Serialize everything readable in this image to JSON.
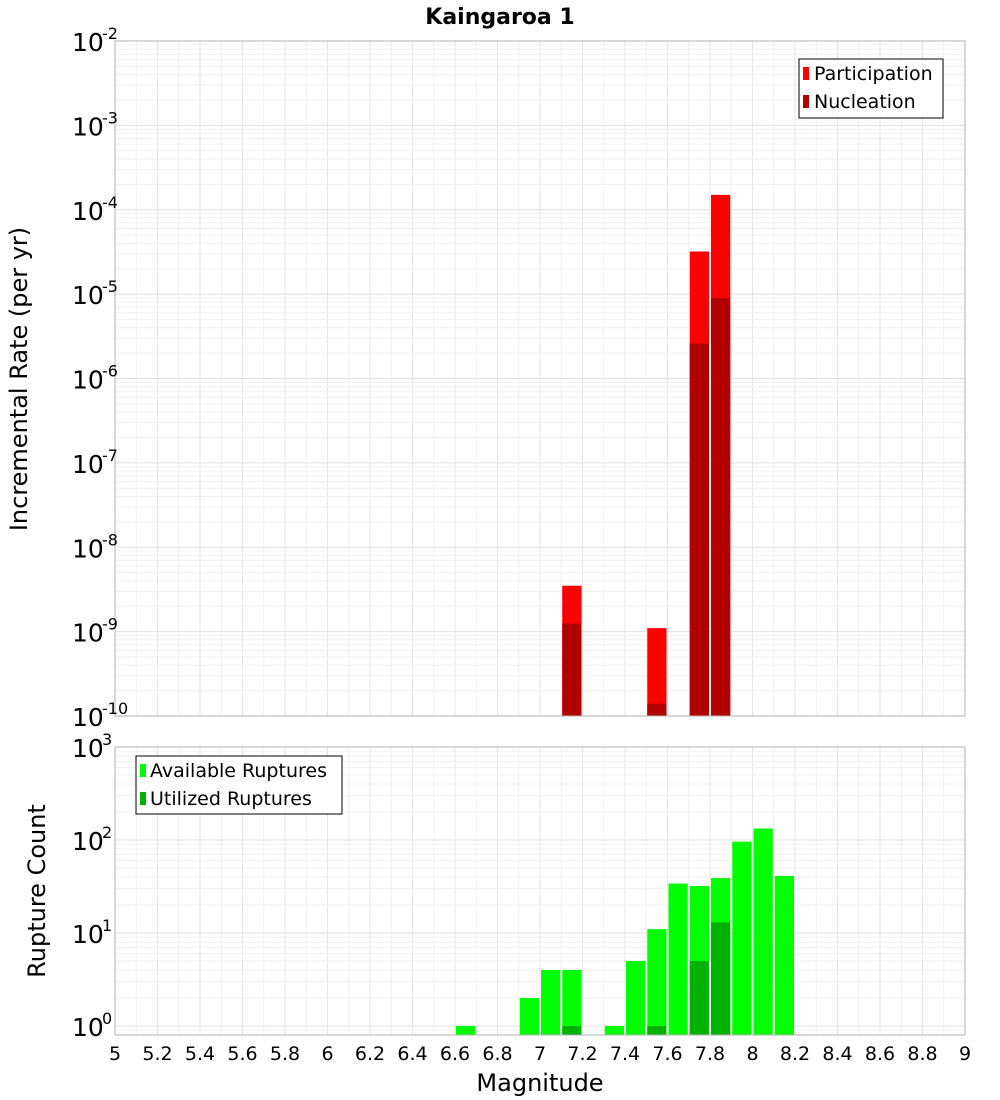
{
  "chart_data": [
    {
      "type": "bar",
      "title": "Kaingaroa 1",
      "xlabel": "Magnitude",
      "ylabel": "Incremental Rate (per yr)",
      "xlim": [
        5,
        9
      ],
      "ylim": [
        1e-10,
        0.01
      ],
      "yscale": "log",
      "bin_width": 0.1,
      "grid": true,
      "legend_position": "top-right",
      "series": [
        {
          "name": "Participation",
          "color": "#ff0000",
          "points": [
            {
              "x": 7.15,
              "y": 3.5e-09
            },
            {
              "x": 7.55,
              "y": 1.1e-09
            },
            {
              "x": 7.75,
              "y": 3.2e-05
            },
            {
              "x": 7.85,
              "y": 0.00015
            }
          ]
        },
        {
          "name": "Nucleation",
          "color": "#b20000",
          "points": [
            {
              "x": 7.15,
              "y": 1.25e-09
            },
            {
              "x": 7.55,
              "y": 1.4e-10
            },
            {
              "x": 7.75,
              "y": 2.6e-06
            },
            {
              "x": 7.85,
              "y": 9e-06
            }
          ]
        }
      ]
    },
    {
      "type": "bar",
      "xlabel": "Magnitude",
      "ylabel": "Rupture Count",
      "xlim": [
        5,
        9
      ],
      "ylim": [
        0.8,
        1000
      ],
      "yscale": "log",
      "bin_width": 0.1,
      "grid": true,
      "legend_position": "top-left",
      "series": [
        {
          "name": "Available Ruptures",
          "color": "#00ff00",
          "points": [
            {
              "x": 6.65,
              "y": 1
            },
            {
              "x": 6.95,
              "y": 2
            },
            {
              "x": 7.05,
              "y": 4
            },
            {
              "x": 7.15,
              "y": 4
            },
            {
              "x": 7.35,
              "y": 1
            },
            {
              "x": 7.45,
              "y": 5
            },
            {
              "x": 7.55,
              "y": 11
            },
            {
              "x": 7.65,
              "y": 34
            },
            {
              "x": 7.75,
              "y": 32
            },
            {
              "x": 7.85,
              "y": 39
            },
            {
              "x": 7.95,
              "y": 96
            },
            {
              "x": 8.05,
              "y": 133
            },
            {
              "x": 8.15,
              "y": 41
            }
          ]
        },
        {
          "name": "Utilized Ruptures",
          "color": "#00b200",
          "points": [
            {
              "x": 7.15,
              "y": 1
            },
            {
              "x": 7.55,
              "y": 1
            },
            {
              "x": 7.75,
              "y": 5
            },
            {
              "x": 7.85,
              "y": 13
            }
          ]
        }
      ]
    }
  ],
  "x_ticks": [
    "5",
    "5.2",
    "5.4",
    "5.6",
    "5.8",
    "6",
    "6.2",
    "6.4",
    "6.6",
    "6.8",
    "7",
    "7.2",
    "7.4",
    "7.6",
    "7.8",
    "8",
    "8.2",
    "8.4",
    "8.6",
    "8.8",
    "9"
  ],
  "top_y_ticks": [
    {
      "base": "10",
      "exp": "-2",
      "value": 0.01
    },
    {
      "base": "10",
      "exp": "-3",
      "value": 0.001
    },
    {
      "base": "10",
      "exp": "-4",
      "value": 0.0001
    },
    {
      "base": "10",
      "exp": "-5",
      "value": 1e-05
    },
    {
      "base": "10",
      "exp": "-6",
      "value": 1e-06
    },
    {
      "base": "10",
      "exp": "-7",
      "value": 1e-07
    },
    {
      "base": "10",
      "exp": "-8",
      "value": 1e-08
    },
    {
      "base": "10",
      "exp": "-9",
      "value": 1e-09
    },
    {
      "base": "10",
      "exp": "-10",
      "value": 1e-10
    }
  ],
  "bottom_y_ticks": [
    {
      "base": "10",
      "exp": "3",
      "value": 1000
    },
    {
      "base": "10",
      "exp": "2",
      "value": 100
    },
    {
      "base": "10",
      "exp": "1",
      "value": 10
    },
    {
      "base": "10",
      "exp": "0",
      "value": 1
    }
  ]
}
